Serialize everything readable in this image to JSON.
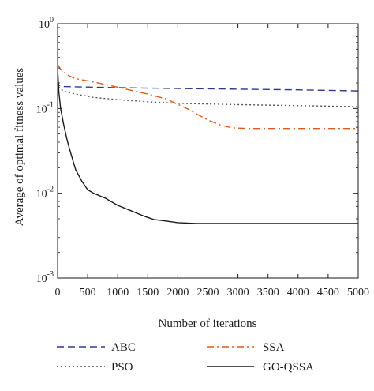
{
  "chart_data": {
    "type": "line",
    "xlabel": "Number of iterations",
    "ylabel": "Average of optimal fitness values",
    "x_range": [
      0,
      5000
    ],
    "y_range": [
      0.001,
      1
    ],
    "y_scale": "log",
    "grid": false,
    "legend_placement": "bottom",
    "x_ticks": [
      0,
      500,
      1000,
      1500,
      2000,
      2500,
      3000,
      3500,
      4000,
      4500,
      5000
    ],
    "x_tick_labels": [
      "0",
      "500",
      "1000",
      "1500",
      "2000",
      "2500",
      "3000",
      "3500",
      "4000",
      "4500",
      "5000"
    ],
    "y_ticks": [
      {
        "value": 0.001,
        "base": "10",
        "exp": "-3"
      },
      {
        "value": 0.01,
        "base": "10",
        "exp": "-2"
      },
      {
        "value": 0.1,
        "base": "10",
        "exp": "-1"
      },
      {
        "value": 1,
        "base": "10",
        "exp": "0"
      }
    ],
    "series": [
      {
        "name": "ABC",
        "color": "#2b3a8f",
        "dash": "9,5",
        "points": [
          [
            0,
            0.22
          ],
          [
            20,
            0.19
          ],
          [
            50,
            0.182
          ],
          [
            300,
            0.18
          ],
          [
            1000,
            0.176
          ],
          [
            2000,
            0.172
          ],
          [
            3000,
            0.169
          ],
          [
            4000,
            0.166
          ],
          [
            5000,
            0.161
          ]
        ]
      },
      {
        "name": "SSA",
        "color": "#e05a1a",
        "dash": "9,4,2,4",
        "points": [
          [
            0,
            0.33
          ],
          [
            50,
            0.29
          ],
          [
            150,
            0.25
          ],
          [
            300,
            0.225
          ],
          [
            600,
            0.205
          ],
          [
            900,
            0.185
          ],
          [
            1200,
            0.165
          ],
          [
            1500,
            0.148
          ],
          [
            1800,
            0.13
          ],
          [
            2000,
            0.112
          ],
          [
            2150,
            0.1
          ],
          [
            2300,
            0.087
          ],
          [
            2500,
            0.073
          ],
          [
            2700,
            0.064
          ],
          [
            2900,
            0.059
          ],
          [
            3200,
            0.058
          ],
          [
            4000,
            0.058
          ],
          [
            5000,
            0.058
          ]
        ]
      },
      {
        "name": "PSO",
        "color": "#555555",
        "dash": "2,3",
        "points": [
          [
            0,
            0.2
          ],
          [
            30,
            0.175
          ],
          [
            100,
            0.16
          ],
          [
            300,
            0.148
          ],
          [
            600,
            0.135
          ],
          [
            1000,
            0.127
          ],
          [
            1500,
            0.12
          ],
          [
            2000,
            0.115
          ],
          [
            3000,
            0.111
          ],
          [
            4000,
            0.108
          ],
          [
            5000,
            0.105
          ]
        ]
      },
      {
        "name": "GO-QSSA",
        "color": "#1a1a1a",
        "dash": "",
        "points": [
          [
            0,
            0.3
          ],
          [
            20,
            0.16
          ],
          [
            50,
            0.1
          ],
          [
            100,
            0.065
          ],
          [
            150,
            0.045
          ],
          [
            200,
            0.033
          ],
          [
            250,
            0.025
          ],
          [
            300,
            0.019
          ],
          [
            400,
            0.014
          ],
          [
            500,
            0.011
          ],
          [
            600,
            0.01
          ],
          [
            800,
            0.0087
          ],
          [
            1000,
            0.0072
          ],
          [
            1200,
            0.0063
          ],
          [
            1400,
            0.0055
          ],
          [
            1600,
            0.0049
          ],
          [
            1800,
            0.0047
          ],
          [
            2000,
            0.0045
          ],
          [
            2300,
            0.0044
          ],
          [
            3000,
            0.0044
          ],
          [
            4000,
            0.0044
          ],
          [
            5000,
            0.0044
          ]
        ]
      }
    ]
  },
  "legend": {
    "abc": "ABC",
    "pso": "PSO",
    "ssa": "SSA",
    "goqssa": "GO-QSSA"
  }
}
